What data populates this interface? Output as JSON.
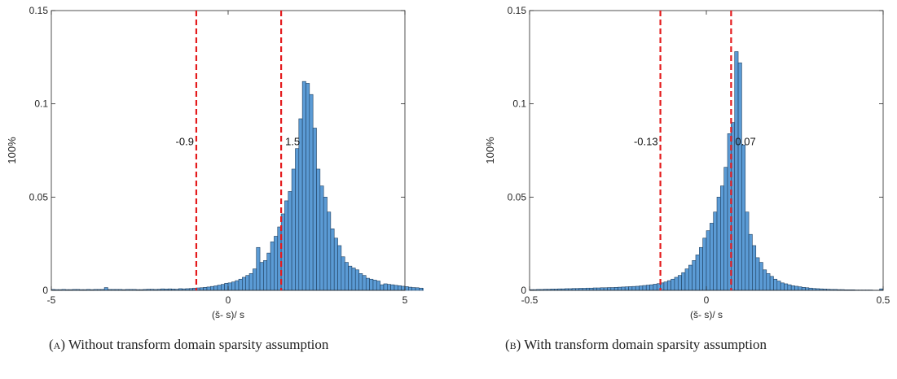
{
  "chart_data": [
    {
      "type": "bar",
      "panel": "a",
      "xlabel": "(š- s)/ s",
      "ylabel": "100%",
      "xlim": [
        -5,
        5
      ],
      "ylim": [
        0,
        0.15
      ],
      "xticks": [
        "-5",
        "0",
        "5"
      ],
      "yticks": [
        "0",
        "0.05",
        "0.1",
        "0.15"
      ],
      "bar_color": "#5b9bd5",
      "bin_width": 0.1,
      "bins_start": -5,
      "values": [
        0.0005,
        0.0004,
        0.0004,
        0.0005,
        0.0004,
        0.0004,
        0.0005,
        0.0005,
        0.0004,
        0.0004,
        0.0005,
        0.0004,
        0.0005,
        0.0005,
        0.0005,
        0.0015,
        0.0005,
        0.0005,
        0.0005,
        0.0005,
        0.0004,
        0.0005,
        0.0005,
        0.0005,
        0.0004,
        0.0004,
        0.0005,
        0.0006,
        0.0006,
        0.0005,
        0.0006,
        0.0008,
        0.0007,
        0.0008,
        0.0007,
        0.0006,
        0.0009,
        0.0008,
        0.0009,
        0.001,
        0.0012,
        0.0013,
        0.0014,
        0.0016,
        0.0018,
        0.0021,
        0.0024,
        0.0028,
        0.0032,
        0.0038,
        0.004,
        0.0045,
        0.0052,
        0.006,
        0.007,
        0.008,
        0.009,
        0.0115,
        0.023,
        0.015,
        0.016,
        0.02,
        0.026,
        0.029,
        0.034,
        0.041,
        0.048,
        0.053,
        0.065,
        0.076,
        0.092,
        0.112,
        0.111,
        0.105,
        0.087,
        0.065,
        0.056,
        0.05,
        0.042,
        0.033,
        0.028,
        0.024,
        0.018,
        0.015,
        0.013,
        0.012,
        0.011,
        0.009,
        0.008,
        0.0065,
        0.006,
        0.0055,
        0.005,
        0.003,
        0.0035,
        0.0032,
        0.003,
        0.0027,
        0.0025,
        0.0022,
        0.002,
        0.0017,
        0.0015,
        0.0014,
        0.0012,
        0.001,
        0.0009,
        0.0008,
        0.0007,
        0.0006,
        0.0006,
        0.0005,
        0.0005,
        0.0004,
        0.0004,
        0.0005,
        0.0004,
        0.0004,
        0.0003,
        0.0003
      ],
      "thresholds": [
        {
          "value": -0.9,
          "label": "-0.9",
          "label_side": "left"
        },
        {
          "value": 1.5,
          "label": "1.5",
          "label_side": "right"
        }
      ],
      "threshold_color": "#e41a1c",
      "threshold_label_y": 0.08
    },
    {
      "type": "bar",
      "panel": "b",
      "xlabel": "(š- s)/ s",
      "ylabel": "100%",
      "xlim": [
        -0.5,
        0.5
      ],
      "ylim": [
        0,
        0.15
      ],
      "xticks": [
        "-0.5",
        "0",
        "0.5"
      ],
      "yticks": [
        "0",
        "0.05",
        "0.1",
        "0.15"
      ],
      "bar_color": "#5b9bd5",
      "bin_width": 0.01,
      "bins_start": -0.5,
      "values": [
        0.0004,
        0.0004,
        0.0005,
        0.0005,
        0.0006,
        0.0006,
        0.0007,
        0.0007,
        0.0008,
        0.0008,
        0.0009,
        0.0009,
        0.001,
        0.001,
        0.0011,
        0.0011,
        0.0012,
        0.0012,
        0.0013,
        0.0013,
        0.0014,
        0.0014,
        0.0015,
        0.0015,
        0.0016,
        0.0017,
        0.0018,
        0.0019,
        0.002,
        0.0021,
        0.0022,
        0.0024,
        0.0026,
        0.0028,
        0.003,
        0.0033,
        0.0036,
        0.004,
        0.0045,
        0.0052,
        0.006,
        0.007,
        0.008,
        0.0095,
        0.0115,
        0.0135,
        0.016,
        0.019,
        0.023,
        0.028,
        0.032,
        0.036,
        0.042,
        0.05,
        0.056,
        0.066,
        0.084,
        0.09,
        0.128,
        0.122,
        0.078,
        0.042,
        0.03,
        0.024,
        0.0175,
        0.015,
        0.011,
        0.009,
        0.0075,
        0.006,
        0.005,
        0.004,
        0.0035,
        0.003,
        0.0025,
        0.0022,
        0.0019,
        0.0016,
        0.0014,
        0.0012,
        0.001,
        0.0009,
        0.0008,
        0.0007,
        0.0006,
        0.0005,
        0.0005,
        0.0004,
        0.0004,
        0.0003,
        0.0003,
        0.0003,
        0.0002,
        0.0002,
        0.0002,
        0.0002,
        0.0002,
        0.0001,
        0.0001,
        0.0008
      ],
      "thresholds": [
        {
          "value": -0.13,
          "label": "-0.13",
          "label_side": "left"
        },
        {
          "value": 0.07,
          "label": "0.07",
          "label_side": "right"
        }
      ],
      "threshold_color": "#e41a1c",
      "threshold_label_y": 0.08
    }
  ],
  "captions": [
    {
      "tag": "(a)",
      "text": " Without transform domain sparsity assumption"
    },
    {
      "tag": "(b)",
      "text": " With transform domain sparsity assumption"
    }
  ]
}
